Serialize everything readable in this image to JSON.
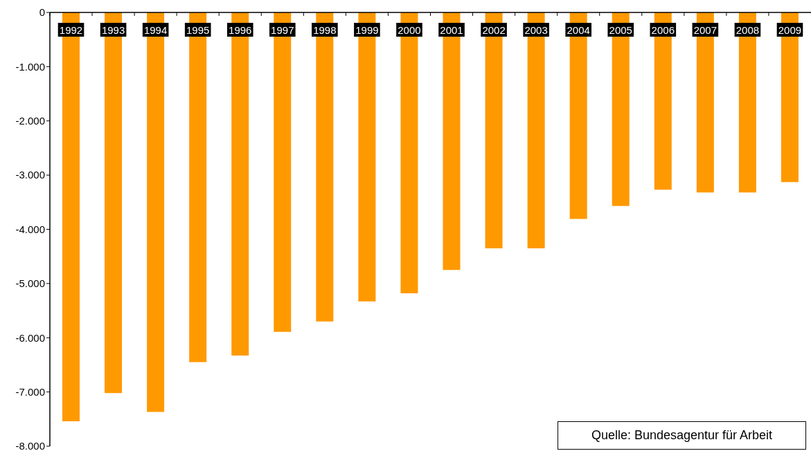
{
  "chart_data": {
    "type": "bar",
    "categories": [
      "1992",
      "1993",
      "1994",
      "1995",
      "1996",
      "1997",
      "1998",
      "1999",
      "2000",
      "2001",
      "2002",
      "2003",
      "2004",
      "2005",
      "2006",
      "2007",
      "2008",
      "2009"
    ],
    "values": [
      -7540,
      -7020,
      -7370,
      -6450,
      -6330,
      -5890,
      -5700,
      -5330,
      -5180,
      -4750,
      -4350,
      -4350,
      -3810,
      -3570,
      -3270,
      -3320,
      -3320,
      -3130
    ],
    "color": "#ff9900",
    "ylim": [
      -8000,
      0
    ],
    "yticks": [
      {
        "value": -8000,
        "label": "-8.000"
      },
      {
        "value": -7000,
        "label": "-7.000"
      },
      {
        "value": -6000,
        "label": "-6.000"
      },
      {
        "value": -5000,
        "label": "-5.000"
      },
      {
        "value": -4000,
        "label": "-4.000"
      },
      {
        "value": -3000,
        "label": "-3.000"
      },
      {
        "value": -2000,
        "label": "-2.000"
      },
      {
        "value": -1000,
        "label": "-1.000"
      },
      0
    ],
    "annotations": [
      "Quelle: Bundesagentur für Arbeit"
    ]
  }
}
